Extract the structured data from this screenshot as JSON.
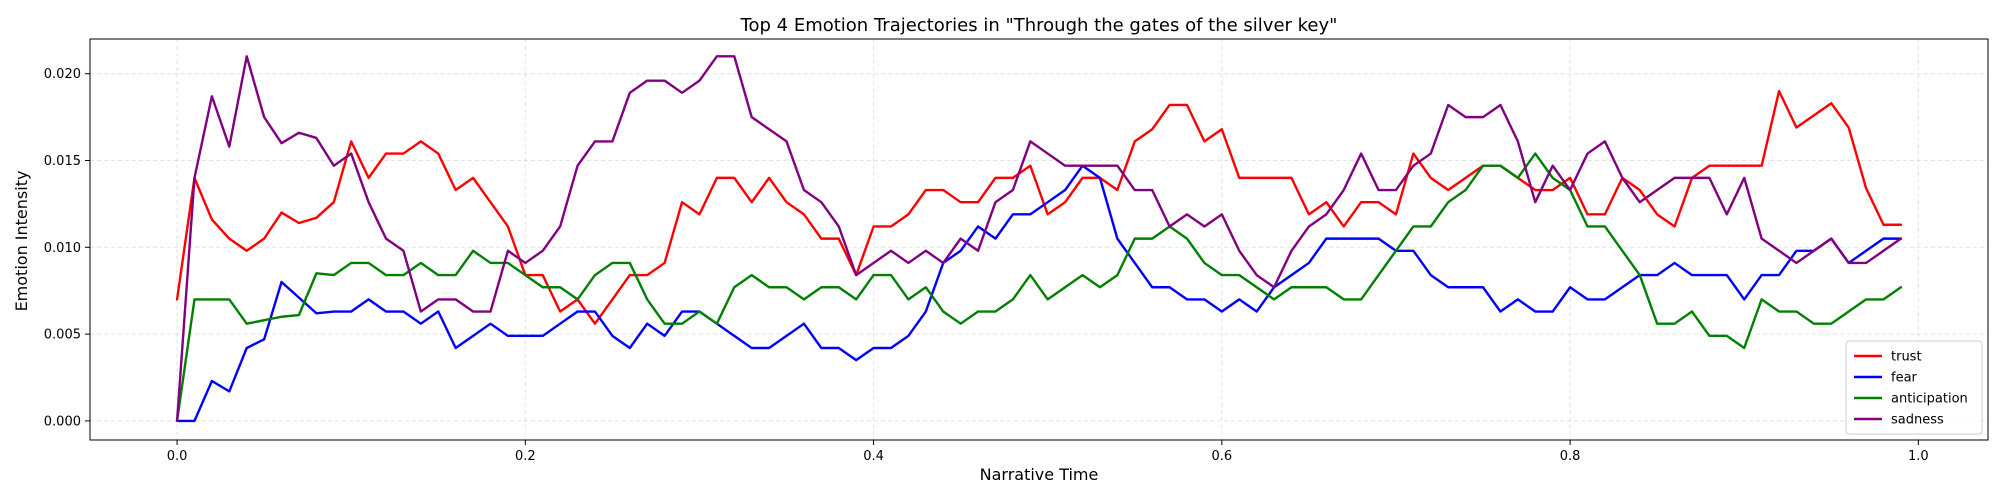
{
  "chart_data": {
    "type": "line",
    "title": "Top 4 Emotion Trajectories in \"Through the gates of the silver key\"",
    "xlabel": "Narrative Time",
    "ylabel": "Emotion Intensity",
    "xlim": [
      -0.05,
      1.04
    ],
    "ylim": [
      -0.0011,
      0.022
    ],
    "xticks": [
      0.0,
      0.2,
      0.4,
      0.6,
      0.8,
      1.0
    ],
    "xtick_labels": [
      "0.0",
      "0.2",
      "0.4",
      "0.6",
      "0.8",
      "1.0"
    ],
    "yticks": [
      0.0,
      0.005,
      0.01,
      0.015,
      0.02
    ],
    "ytick_labels": [
      "0.000",
      "0.005",
      "0.010",
      "0.015",
      "0.020"
    ],
    "grid": true,
    "legend_position": "lower-right",
    "x": [
      0.0,
      0.01,
      0.02,
      0.03,
      0.04,
      0.05,
      0.06,
      0.07,
      0.08,
      0.09,
      0.1,
      0.11,
      0.12,
      0.13,
      0.14,
      0.15,
      0.16,
      0.17,
      0.18,
      0.19,
      0.2,
      0.21,
      0.22,
      0.23,
      0.24,
      0.25,
      0.26,
      0.27,
      0.28,
      0.29,
      0.3,
      0.31,
      0.32,
      0.33,
      0.34,
      0.35,
      0.36,
      0.37,
      0.38,
      0.39,
      0.4,
      0.41,
      0.42,
      0.43,
      0.44,
      0.45,
      0.46,
      0.47,
      0.48,
      0.49,
      0.5,
      0.51,
      0.52,
      0.53,
      0.54,
      0.55,
      0.56,
      0.57,
      0.58,
      0.59,
      0.6,
      0.61,
      0.62,
      0.63,
      0.64,
      0.65,
      0.66,
      0.67,
      0.68,
      0.69,
      0.7,
      0.71,
      0.72,
      0.73,
      0.74,
      0.75,
      0.76,
      0.77,
      0.78,
      0.79,
      0.8,
      0.81,
      0.82,
      0.83,
      0.84,
      0.85,
      0.86,
      0.87,
      0.88,
      0.89,
      0.9,
      0.91,
      0.92,
      0.93,
      0.94,
      0.95,
      0.96,
      0.97,
      0.98,
      0.99
    ],
    "series": [
      {
        "name": "trust",
        "color": "#ff0000",
        "values": [
          0.007,
          0.014,
          0.0116,
          0.0105,
          0.0098,
          0.0105,
          0.012,
          0.0114,
          0.0117,
          0.0126,
          0.0161,
          0.014,
          0.0154,
          0.0154,
          0.0161,
          0.0154,
          0.0133,
          0.014,
          0.0126,
          0.0112,
          0.0084,
          0.0084,
          0.0063,
          0.007,
          0.0056,
          0.007,
          0.0084,
          0.0084,
          0.0091,
          0.0126,
          0.0119,
          0.014,
          0.014,
          0.0126,
          0.014,
          0.0126,
          0.0119,
          0.0105,
          0.0105,
          0.0084,
          0.0112,
          0.0112,
          0.0119,
          0.0133,
          0.0133,
          0.0126,
          0.0126,
          0.014,
          0.014,
          0.0147,
          0.0119,
          0.0126,
          0.014,
          0.014,
          0.0133,
          0.0161,
          0.0168,
          0.0182,
          0.0182,
          0.0161,
          0.0168,
          0.014,
          0.014,
          0.014,
          0.014,
          0.0119,
          0.0126,
          0.0112,
          0.0126,
          0.0126,
          0.0119,
          0.0154,
          0.014,
          0.0133,
          0.014,
          0.0147,
          0.0147,
          0.014,
          0.0133,
          0.0133,
          0.014,
          0.0119,
          0.0119,
          0.014,
          0.0133,
          0.0119,
          0.0112,
          0.014,
          0.0147,
          0.0147,
          0.0147,
          0.0147,
          0.019,
          0.0169,
          0.0176,
          0.0183,
          0.0169,
          0.0134,
          0.0113,
          0.0113
        ]
      },
      {
        "name": "fear",
        "color": "#0000ff",
        "values": [
          0.0,
          0.0,
          0.0023,
          0.0017,
          0.0042,
          0.0047,
          0.008,
          0.0071,
          0.0062,
          0.0063,
          0.0063,
          0.007,
          0.0063,
          0.0063,
          0.0056,
          0.0063,
          0.0042,
          0.0049,
          0.0056,
          0.0049,
          0.0049,
          0.0049,
          0.0056,
          0.0063,
          0.0063,
          0.0049,
          0.0042,
          0.0056,
          0.0049,
          0.0063,
          0.0063,
          0.0056,
          0.0049,
          0.0042,
          0.0042,
          0.0049,
          0.0056,
          0.0042,
          0.0042,
          0.0035,
          0.0042,
          0.0042,
          0.0049,
          0.0063,
          0.0091,
          0.0098,
          0.0112,
          0.0105,
          0.0119,
          0.0119,
          0.0126,
          0.0133,
          0.0147,
          0.014,
          0.0105,
          0.0091,
          0.0077,
          0.0077,
          0.007,
          0.007,
          0.0063,
          0.007,
          0.0063,
          0.0077,
          0.0084,
          0.0091,
          0.0105,
          0.0105,
          0.0105,
          0.0105,
          0.0098,
          0.0098,
          0.0084,
          0.0077,
          0.0077,
          0.0077,
          0.0063,
          0.007,
          0.0063,
          0.0063,
          0.0077,
          0.007,
          0.007,
          0.0077,
          0.0084,
          0.0084,
          0.0091,
          0.0084,
          0.0084,
          0.0084,
          0.007,
          0.0084,
          0.0084,
          0.0098,
          0.0098,
          0.0105,
          0.0091,
          0.0098,
          0.0105,
          0.0105
        ]
      },
      {
        "name": "anticipation",
        "color": "#008000",
        "values": [
          0.0,
          0.007,
          0.007,
          0.007,
          0.0056,
          0.0058,
          0.006,
          0.0061,
          0.0085,
          0.0084,
          0.0091,
          0.0091,
          0.0084,
          0.0084,
          0.0091,
          0.0084,
          0.0084,
          0.0098,
          0.0091,
          0.0091,
          0.0084,
          0.0077,
          0.0077,
          0.007,
          0.0084,
          0.0091,
          0.0091,
          0.007,
          0.0056,
          0.0056,
          0.0063,
          0.0056,
          0.0077,
          0.0084,
          0.0077,
          0.0077,
          0.007,
          0.0077,
          0.0077,
          0.007,
          0.0084,
          0.0084,
          0.007,
          0.0077,
          0.0063,
          0.0056,
          0.0063,
          0.0063,
          0.007,
          0.0084,
          0.007,
          0.0077,
          0.0084,
          0.0077,
          0.0084,
          0.0105,
          0.0105,
          0.0112,
          0.0105,
          0.0091,
          0.0084,
          0.0084,
          0.0077,
          0.007,
          0.0077,
          0.0077,
          0.0077,
          0.007,
          0.007,
          0.0084,
          0.0098,
          0.0112,
          0.0112,
          0.0126,
          0.0133,
          0.0147,
          0.0147,
          0.014,
          0.0154,
          0.014,
          0.0133,
          0.0112,
          0.0112,
          0.0098,
          0.0084,
          0.0056,
          0.0056,
          0.0063,
          0.0049,
          0.0049,
          0.0042,
          0.007,
          0.0063,
          0.0063,
          0.0056,
          0.0056,
          0.0063,
          0.007,
          0.007,
          0.0077
        ]
      },
      {
        "name": "sadness",
        "color": "#800080",
        "values": [
          0.0,
          0.014,
          0.0187,
          0.0158,
          0.021,
          0.0175,
          0.016,
          0.0166,
          0.0163,
          0.0147,
          0.0154,
          0.0126,
          0.0105,
          0.0098,
          0.0063,
          0.007,
          0.007,
          0.0063,
          0.0063,
          0.0098,
          0.0091,
          0.0098,
          0.0112,
          0.0147,
          0.0161,
          0.0161,
          0.0189,
          0.0196,
          0.0196,
          0.0189,
          0.0196,
          0.021,
          0.021,
          0.0175,
          0.0168,
          0.0161,
          0.0133,
          0.0126,
          0.0112,
          0.0084,
          0.0091,
          0.0098,
          0.0091,
          0.0098,
          0.0091,
          0.0105,
          0.0098,
          0.0126,
          0.0133,
          0.0161,
          0.0154,
          0.0147,
          0.0147,
          0.0147,
          0.0147,
          0.0133,
          0.0133,
          0.0112,
          0.0119,
          0.0112,
          0.0119,
          0.0098,
          0.0084,
          0.0077,
          0.0098,
          0.0112,
          0.0119,
          0.0133,
          0.0154,
          0.0133,
          0.0133,
          0.0147,
          0.0154,
          0.0182,
          0.0175,
          0.0175,
          0.0182,
          0.0161,
          0.0126,
          0.0147,
          0.0133,
          0.0154,
          0.0161,
          0.014,
          0.0126,
          0.0133,
          0.014,
          0.014,
          0.014,
          0.0119,
          0.014,
          0.0105,
          0.0098,
          0.0091,
          0.0098,
          0.0105,
          0.0091,
          0.0091,
          0.0098,
          0.0105
        ]
      }
    ]
  }
}
